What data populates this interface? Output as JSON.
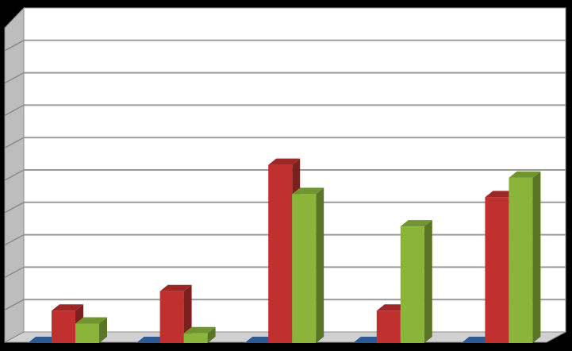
{
  "chart_data": {
    "type": "bar",
    "categories": [
      "",
      "",
      "",
      "",
      ""
    ],
    "series": [
      {
        "name": "",
        "color": "#2e5a94",
        "values": [
          0,
          0,
          0,
          0,
          0
        ]
      },
      {
        "name": "",
        "color": "#c0302f",
        "values": [
          1,
          1.6,
          5.5,
          1,
          4.5
        ]
      },
      {
        "name": "",
        "color": "#8ab43a",
        "values": [
          0.6,
          0.3,
          4.6,
          3.6,
          5.1
        ]
      }
    ],
    "ylim": [
      0,
      10
    ],
    "grid": true,
    "gridline_count": 10,
    "background_color": "#000000",
    "plot_color": "#ffffff",
    "floor_color": "#d0d0d0"
  }
}
